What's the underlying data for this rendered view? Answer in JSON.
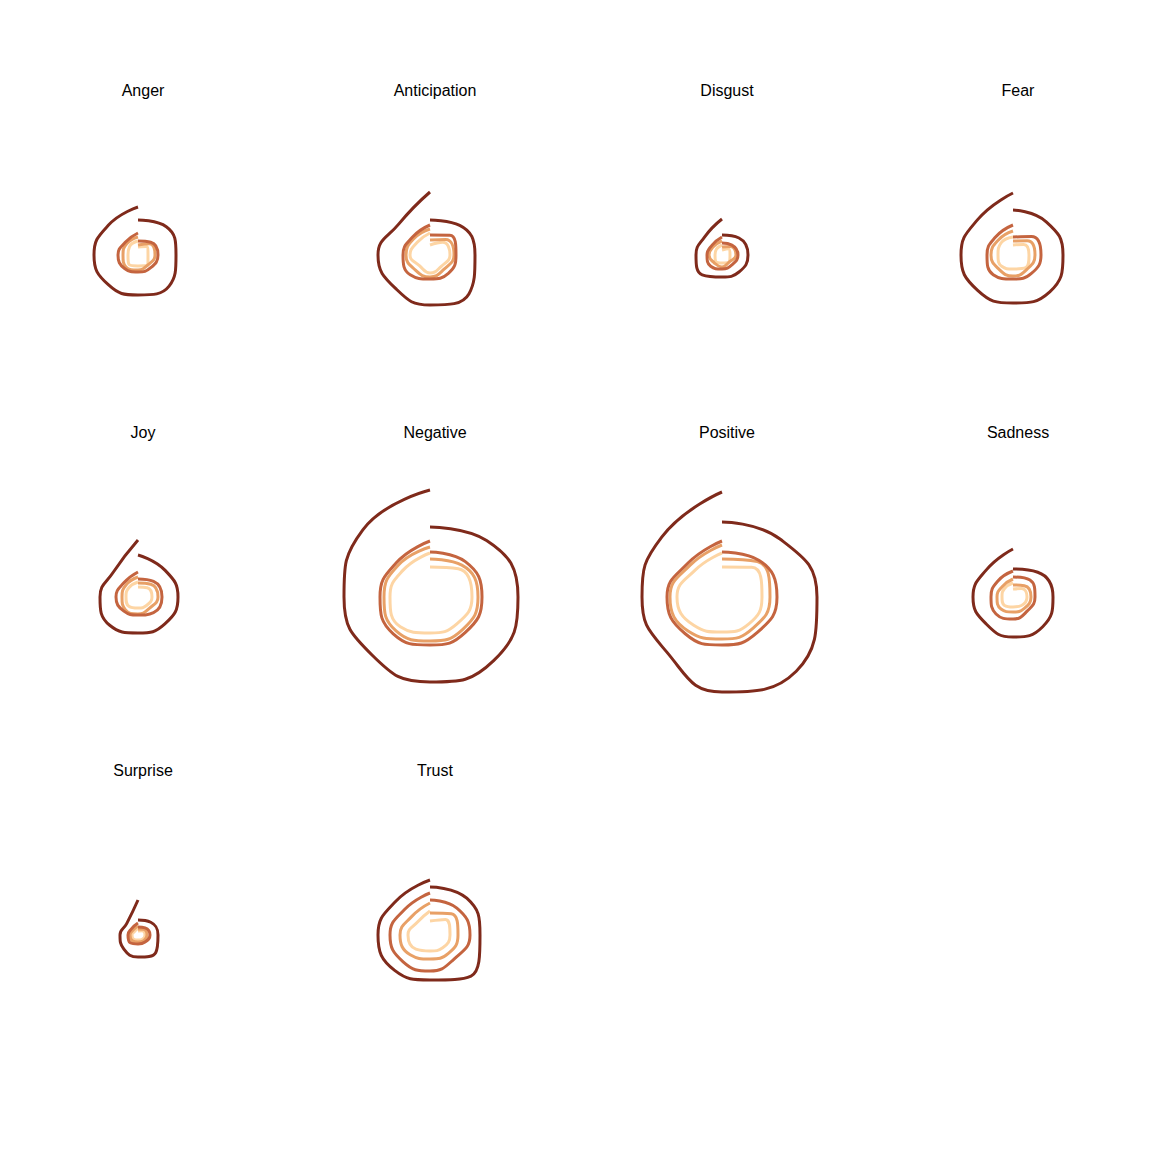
{
  "chart_data": [
    {
      "type": "polar",
      "title": "Anger",
      "x": [
        0,
        45,
        90,
        135,
        180,
        225,
        270,
        315,
        360
      ],
      "xlim": [
        0,
        360
      ],
      "ylim": [
        0,
        120
      ],
      "tick_labels": false,
      "series": [
        {
          "color": "#7f2a1b",
          "values": [
            35,
            40,
            38,
            44,
            40,
            42,
            44,
            42,
            48
          ]
        },
        {
          "color": "#c4643f",
          "values": [
            14,
            18,
            20,
            18,
            17,
            19,
            20,
            18,
            22
          ]
        },
        {
          "color": "#e8a066",
          "values": [
            10,
            16,
            17,
            14,
            15,
            17,
            15,
            16,
            18
          ]
        },
        {
          "color": "#fdd5a4",
          "values": [
            8,
            12,
            10,
            14,
            11,
            13,
            10,
            12,
            14
          ]
        }
      ]
    },
    {
      "type": "polar",
      "title": "Anticipation",
      "x": [
        0,
        45,
        90,
        135,
        180,
        225,
        270,
        315,
        360
      ],
      "xlim": [
        0,
        360
      ],
      "ylim": [
        0,
        120
      ],
      "tick_labels": false,
      "series": [
        {
          "color": "#7f2a1b",
          "values": [
            35,
            42,
            45,
            55,
            50,
            48,
            52,
            44,
            63
          ]
        },
        {
          "color": "#c4643f",
          "values": [
            20,
            28,
            26,
            26,
            24,
            28,
            27,
            25,
            30
          ]
        },
        {
          "color": "#e8a066",
          "values": [
            15,
            22,
            24,
            20,
            22,
            21,
            24,
            23,
            26
          ]
        },
        {
          "color": "#fdd5a4",
          "values": [
            10,
            18,
            20,
            16,
            18,
            15,
            20,
            18,
            22
          ]
        }
      ]
    },
    {
      "type": "polar",
      "title": "Disgust",
      "x": [
        0,
        45,
        90,
        135,
        180,
        225,
        270,
        315,
        360
      ],
      "xlim": [
        0,
        360
      ],
      "ylim": [
        0,
        120
      ],
      "tick_labels": false,
      "series": [
        {
          "color": "#7f2a1b",
          "values": [
            20,
            24,
            26,
            24,
            22,
            28,
            26,
            25,
            36
          ]
        },
        {
          "color": "#c4643f",
          "values": [
            12,
            14,
            16,
            14,
            14,
            16,
            15,
            14,
            18
          ]
        },
        {
          "color": "#e8a066",
          "values": [
            8,
            12,
            14,
            10,
            12,
            11,
            13,
            12,
            14
          ]
        },
        {
          "color": "#fdd5a4",
          "values": [
            5,
            9,
            8,
            10,
            8,
            9,
            7,
            8,
            10
          ]
        }
      ]
    },
    {
      "type": "polar",
      "title": "Fear",
      "x": [
        0,
        45,
        90,
        135,
        180,
        225,
        270,
        315,
        360
      ],
      "xlim": [
        0,
        360
      ],
      "ylim": [
        0,
        120
      ],
      "tick_labels": false,
      "series": [
        {
          "color": "#7f2a1b",
          "values": [
            45,
            47,
            50,
            52,
            48,
            50,
            52,
            50,
            62
          ]
        },
        {
          "color": "#c4643f",
          "values": [
            18,
            26,
            28,
            26,
            24,
            28,
            26,
            25,
            30
          ]
        },
        {
          "color": "#e8a066",
          "values": [
            14,
            20,
            22,
            20,
            21,
            20,
            22,
            21,
            24
          ]
        },
        {
          "color": "#fdd5a4",
          "values": [
            10,
            15,
            16,
            18,
            14,
            16,
            15,
            17,
            18
          ]
        }
      ]
    },
    {
      "type": "polar",
      "title": "Joy",
      "x": [
        0,
        45,
        90,
        135,
        180,
        225,
        270,
        315,
        360
      ],
      "xlim": [
        0,
        360
      ],
      "ylim": [
        0,
        120
      ],
      "tick_labels": false,
      "series": [
        {
          "color": "#7f2a1b",
          "values": [
            42,
            38,
            40,
            38,
            36,
            40,
            38,
            35,
            57
          ]
        },
        {
          "color": "#c4643f",
          "values": [
            18,
            22,
            24,
            22,
            18,
            20,
            22,
            20,
            25
          ]
        },
        {
          "color": "#e8a066",
          "values": [
            14,
            18,
            20,
            16,
            17,
            18,
            16,
            17,
            20
          ]
        },
        {
          "color": "#fdd5a4",
          "values": [
            10,
            13,
            14,
            12,
            11,
            13,
            12,
            13,
            15
          ]
        }
      ]
    },
    {
      "type": "polar",
      "title": "Negative",
      "x": [
        0,
        45,
        90,
        135,
        180,
        225,
        270,
        315,
        360
      ],
      "xlim": [
        0,
        360
      ],
      "ylim": [
        0,
        120
      ],
      "tick_labels": false,
      "series": [
        {
          "color": "#7f2a1b",
          "values": [
            70,
            80,
            88,
            90,
            85,
            82,
            86,
            95,
            107
          ]
        },
        {
          "color": "#c4643f",
          "values": [
            45,
            50,
            52,
            50,
            48,
            52,
            50,
            48,
            56
          ]
        },
        {
          "color": "#e8a066",
          "values": [
            38,
            45,
            48,
            46,
            44,
            48,
            46,
            45,
            50
          ]
        },
        {
          "color": "#fdd5a4",
          "values": [
            30,
            40,
            42,
            38,
            36,
            42,
            40,
            38,
            44
          ]
        }
      ]
    },
    {
      "type": "polar",
      "title": "Positive",
      "x": [
        0,
        45,
        90,
        135,
        180,
        225,
        270,
        315,
        360
      ],
      "xlim": [
        0,
        360
      ],
      "ylim": [
        0,
        120
      ],
      "tick_labels": false,
      "series": [
        {
          "color": "#7f2a1b",
          "values": [
            75,
            82,
            95,
            105,
            95,
            78,
            80,
            85,
            105
          ]
        },
        {
          "color": "#c4643f",
          "values": [
            45,
            52,
            55,
            50,
            48,
            52,
            55,
            48,
            56
          ]
        },
        {
          "color": "#e8a066",
          "values": [
            38,
            50,
            48,
            44,
            42,
            48,
            52,
            45,
            52
          ]
        },
        {
          "color": "#fdd5a4",
          "values": [
            30,
            42,
            40,
            38,
            35,
            40,
            45,
            38,
            44
          ]
        }
      ]
    },
    {
      "type": "polar",
      "title": "Sadness",
      "x": [
        0,
        45,
        90,
        135,
        180,
        225,
        270,
        315,
        360
      ],
      "xlim": [
        0,
        360
      ],
      "ylim": [
        0,
        120
      ],
      "tick_labels": false,
      "series": [
        {
          "color": "#7f2a1b",
          "values": [
            28,
            35,
            40,
            42,
            40,
            38,
            40,
            38,
            48
          ]
        },
        {
          "color": "#c4643f",
          "values": [
            20,
            24,
            22,
            20,
            22,
            24,
            22,
            22,
            26
          ]
        },
        {
          "color": "#e8a066",
          "values": [
            12,
            16,
            18,
            16,
            15,
            17,
            16,
            15,
            18
          ]
        },
        {
          "color": "#fdd5a4",
          "values": [
            8,
            12,
            14,
            12,
            10,
            12,
            11,
            12,
            14
          ]
        }
      ]
    },
    {
      "type": "polar",
      "title": "Surprise",
      "x": [
        0,
        45,
        90,
        135,
        180,
        225,
        270,
        315,
        360
      ],
      "xlim": [
        0,
        360
      ],
      "ylim": [
        0,
        120
      ],
      "tick_labels": false,
      "series": [
        {
          "color": "#7f2a1b",
          "values": [
            15,
            18,
            20,
            25,
            22,
            20,
            18,
            16,
            35
          ]
        },
        {
          "color": "#c4643f",
          "values": [
            8,
            10,
            12,
            10,
            9,
            11,
            10,
            9,
            12
          ]
        },
        {
          "color": "#e8a066",
          "values": [
            6,
            8,
            9,
            8,
            7,
            8,
            8,
            7,
            9
          ]
        },
        {
          "color": "#fdd5a4",
          "values": [
            4,
            6,
            7,
            6,
            5,
            6,
            6,
            5,
            7
          ]
        }
      ]
    },
    {
      "type": "polar",
      "title": "Trust",
      "x": [
        0,
        45,
        90,
        135,
        180,
        225,
        270,
        315,
        360
      ],
      "xlim": [
        0,
        360
      ],
      "ylim": [
        0,
        120
      ],
      "tick_labels": false,
      "series": [
        {
          "color": "#7f2a1b",
          "values": [
            48,
            52,
            50,
            58,
            45,
            50,
            52,
            48,
            55
          ]
        },
        {
          "color": "#c4643f",
          "values": [
            35,
            38,
            40,
            34,
            36,
            38,
            40,
            36,
            42
          ]
        },
        {
          "color": "#e8a066",
          "values": [
            22,
            30,
            28,
            26,
            24,
            28,
            30,
            26,
            32
          ]
        },
        {
          "color": "#fdd5a4",
          "values": [
            14,
            22,
            20,
            18,
            16,
            20,
            22,
            18,
            24
          ]
        }
      ]
    }
  ]
}
